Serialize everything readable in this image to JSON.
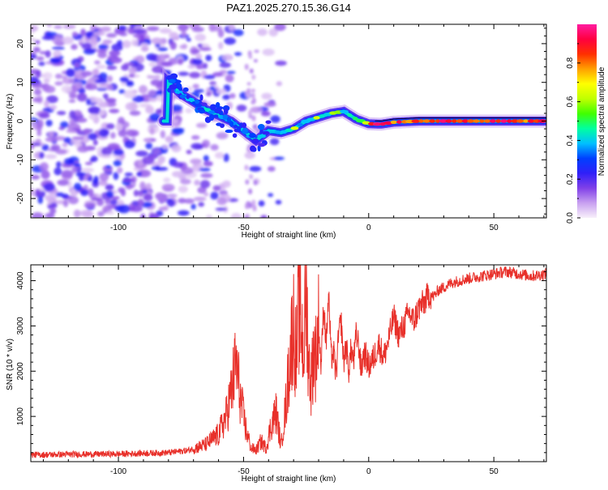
{
  "title": "PAZ1.2025.270.15.36.G14",
  "chart_data": [
    {
      "type": "heatmap",
      "xlabel": "Height of straight line (km)",
      "ylabel": "Frequency (Hz)",
      "xlim": [
        -135,
        71
      ],
      "ylim": [
        -25,
        25
      ],
      "xticks": [
        -100,
        -50,
        0,
        50
      ],
      "xtick_labels": [
        "-100",
        "-50",
        "0",
        "50"
      ],
      "yticks": [
        -20,
        -10,
        0,
        10,
        20
      ],
      "ytick_labels": [
        "-20",
        "-10",
        "0",
        "10",
        "20"
      ],
      "ridge": {
        "x": [
          -80,
          -75,
          -70,
          -65,
          -60,
          -55,
          -50,
          -45,
          -40,
          -35,
          -30,
          -25,
          -20,
          -15,
          -10,
          -5,
          0,
          5,
          10,
          20,
          30,
          40,
          50,
          60,
          71
        ],
        "y": [
          10,
          7,
          5,
          3,
          1.5,
          0,
          -2.5,
          -5,
          -2.5,
          -3,
          -2,
          0,
          1,
          2,
          2.5,
          0.5,
          -0.7,
          -0.8,
          -0.3,
          0,
          0,
          0,
          0,
          0,
          0
        ]
      },
      "colorbar": {
        "label": "Normalized spectral amplitude",
        "range": [
          0,
          1
        ],
        "ticks": [
          0.0,
          0.2,
          0.4,
          0.6,
          0.8
        ],
        "tick_labels": [
          "0.0",
          "0.2",
          "0.4",
          "0.6",
          "0.8"
        ],
        "colors": [
          "#f8f0fa",
          "#c8a0f0",
          "#8040e8",
          "#3020f8",
          "#0040ff",
          "#00c0ff",
          "#00ffa0",
          "#40ff00",
          "#c0ff00",
          "#ffff00",
          "#ffa000",
          "#ff3000",
          "#ff0040",
          "#ff1ca0"
        ]
      }
    },
    {
      "type": "line",
      "xlabel": "Height of straight line (km)",
      "ylabel": "SNR (10 * v/v)",
      "xlim": [
        -135,
        71
      ],
      "ylim": [
        0,
        4350
      ],
      "xticks": [
        -100,
        -50,
        0,
        50
      ],
      "xtick_labels": [
        "-100",
        "-50",
        "0",
        "50"
      ],
      "yticks": [
        1000,
        2000,
        3000,
        4000
      ],
      "ytick_labels": [
        "1000",
        "2000",
        "3000",
        "4000"
      ],
      "color": "#e8302a",
      "series": [
        {
          "name": "SNR",
          "x": [
            -135,
            -120,
            -100,
            -80,
            -72,
            -65,
            -60,
            -57,
            -55,
            -53,
            -51,
            -49,
            -47,
            -45,
            -43,
            -41,
            -39,
            -37,
            -35,
            -33,
            -31,
            -30,
            -29,
            -28,
            -27,
            -26,
            -25,
            -24,
            -23,
            -22,
            -21,
            -20,
            -19,
            -18,
            -17,
            -16,
            -15,
            -14,
            -13,
            -12,
            -11,
            -10,
            -9,
            -8,
            -7,
            -6,
            -5,
            -4,
            -3,
            -2,
            -1,
            0,
            2,
            4,
            6,
            8,
            10,
            12,
            14,
            16,
            18,
            20,
            22,
            24,
            26,
            28,
            30,
            33,
            36,
            40,
            45,
            50,
            55,
            60,
            65,
            71
          ],
          "y": [
            150,
            160,
            170,
            200,
            250,
            380,
            600,
            1000,
            1500,
            2200,
            1300,
            700,
            300,
            250,
            450,
            300,
            800,
            1100,
            350,
            1300,
            2600,
            3100,
            2200,
            3350,
            3100,
            2400,
            3800,
            2200,
            1700,
            2500,
            2300,
            3000,
            2100,
            3500,
            2600,
            3700,
            2300,
            2400,
            1900,
            2800,
            3100,
            2200,
            2600,
            2000,
            2500,
            2200,
            2800,
            2600,
            2000,
            2400,
            2300,
            2100,
            2300,
            2600,
            2300,
            2700,
            3200,
            2800,
            3000,
            3300,
            3100,
            3400,
            3500,
            3700,
            3650,
            3800,
            3850,
            3950,
            4000,
            4050,
            4100,
            4150,
            4200,
            4150,
            4100,
            4150
          ]
        }
      ]
    }
  ]
}
